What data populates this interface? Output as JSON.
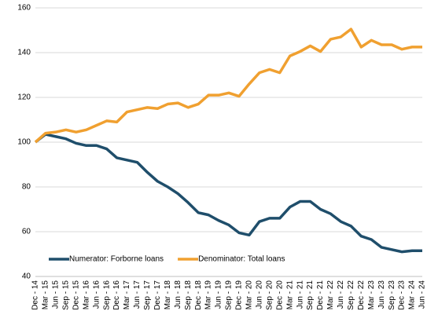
{
  "chart_data": {
    "type": "line",
    "categories": [
      "Dec - 14",
      "Mar - 15",
      "Jun - 15",
      "Sep - 15",
      "Dec - 15",
      "Mar - 16",
      "Jun - 16",
      "Sep - 16",
      "Dec - 16",
      "Mar - 17",
      "Jun - 17",
      "Sep - 17",
      "Dec - 17",
      "Mar - 18",
      "Jun - 18",
      "Sep - 18",
      "Dec - 18",
      "Mar - 19",
      "Jun - 19",
      "Sep - 19",
      "Dec - 19",
      "Mar - 20",
      "Jun - 20",
      "Sep - 20",
      "Dec - 20",
      "Mar - 21",
      "Jun - 21",
      "Sep - 21",
      "Dec - 21",
      "Mar - 22",
      "Jun - 22",
      "Sep - 22",
      "Dec - 22",
      "Mar - 23",
      "Jun - 23",
      "Sep - 23",
      "Dec - 23",
      "Mar - 24",
      "Jun - 24"
    ],
    "series": [
      {
        "name": "Numerator: Forborne loans",
        "color": "#1f4e6b",
        "values": [
          100,
          103.5,
          102.5,
          101.5,
          99.5,
          98.5,
          98.5,
          97,
          93,
          92,
          91,
          86.5,
          82.5,
          80,
          77,
          73,
          68.5,
          67.5,
          65,
          63,
          59.5,
          58.5,
          64.5,
          66,
          66,
          71,
          73.5,
          73.5,
          70,
          68,
          64.5,
          62.5,
          58,
          56.5,
          53,
          52,
          51,
          51.5,
          51.5
        ]
      },
      {
        "name": "Denominator: Total loans",
        "color": "#f0a030",
        "values": [
          100,
          104,
          104.5,
          105.5,
          104.5,
          105.5,
          107.5,
          109.5,
          109,
          113.5,
          114.5,
          115.5,
          115,
          117,
          117.5,
          115.5,
          117,
          121,
          121,
          122,
          120.5,
          126,
          131,
          132.5,
          131,
          138.5,
          140.5,
          143,
          140.5,
          146,
          147,
          150.5,
          142.5,
          145.5,
          143.5,
          143.5,
          141.5,
          142.5,
          142.5
        ]
      }
    ],
    "ylim": [
      40,
      160
    ],
    "yticks": [
      40,
      60,
      80,
      100,
      120,
      140,
      160
    ],
    "grid": true,
    "legend": "bottom-left"
  }
}
